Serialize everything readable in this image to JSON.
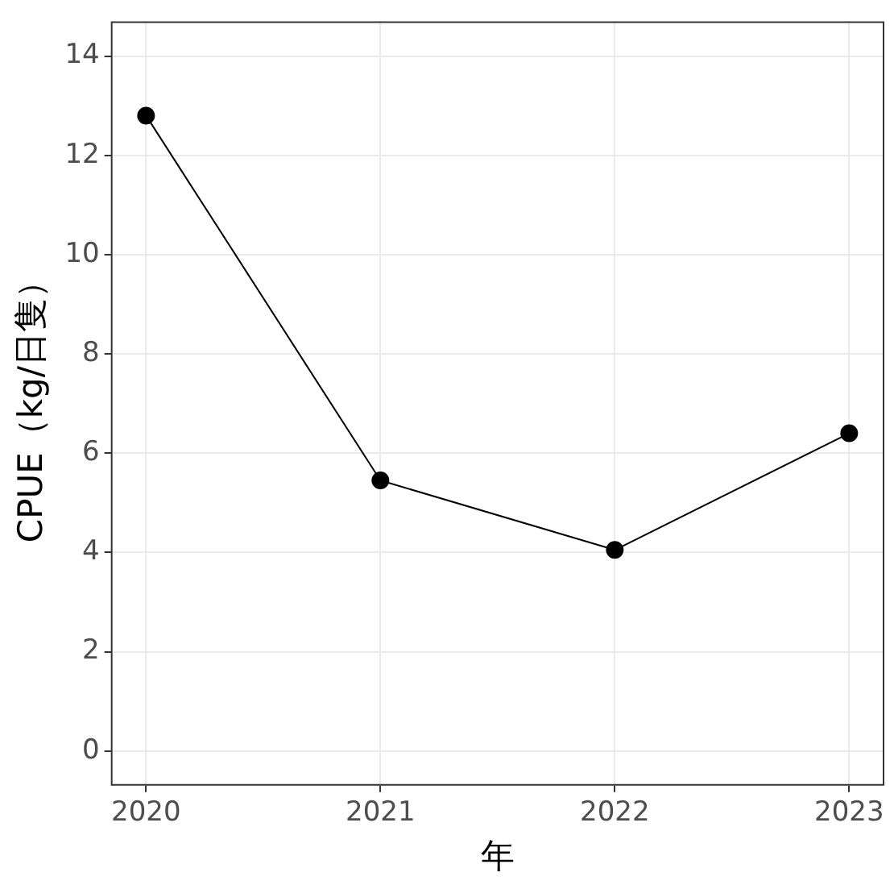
{
  "chart_data": {
    "type": "line",
    "xlabel": "年",
    "ylabel": "CPUE（kg/日隻）",
    "x": [
      2020,
      2021,
      2022,
      2023
    ],
    "series": [
      {
        "color": "#000000",
        "values": [
          12.8,
          5.45,
          4.05,
          6.4
        ]
      }
    ],
    "xlim": [
      2019.85,
      2023.15
    ],
    "xticks": [
      2020,
      2021,
      2022,
      2023
    ],
    "ylim": [
      -0.7,
      14.7
    ],
    "yticks": [
      0,
      2,
      4,
      6,
      8,
      10,
      12,
      14
    ],
    "grid": true,
    "marker": "circle",
    "line_style": "solid",
    "legend": false
  }
}
